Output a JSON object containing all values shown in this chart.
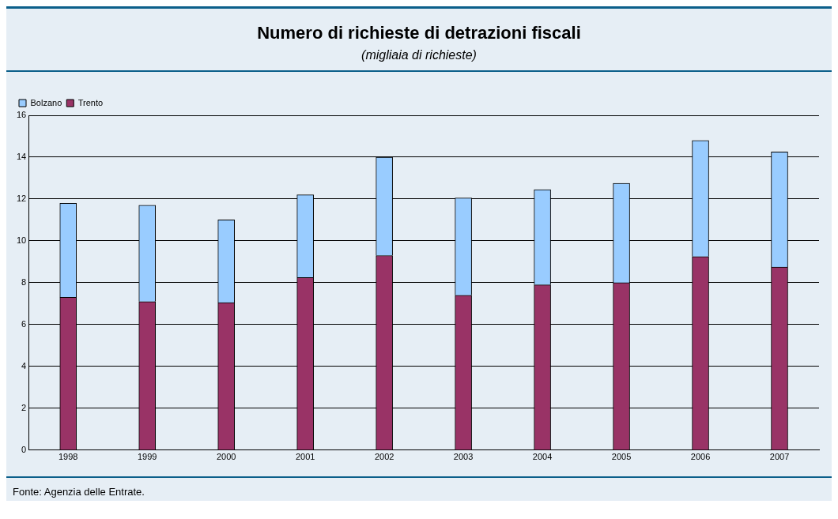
{
  "chart_data": {
    "type": "bar",
    "title": "Numero di richieste di detrazioni fiscali",
    "subtitle": "(migliaia di richieste)",
    "categories": [
      "1998",
      "1999",
      "2000",
      "2001",
      "2002",
      "2003",
      "2004",
      "2005",
      "2006",
      "2007"
    ],
    "series": [
      {
        "name": "Trento",
        "color": "#993366",
        "values": [
          7.3,
          7.1,
          7.05,
          8.25,
          9.3,
          7.4,
          7.9,
          8.0,
          9.25,
          8.75
        ]
      },
      {
        "name": "Bolzano",
        "color": "#99ccff",
        "values": [
          4.5,
          4.6,
          3.95,
          3.95,
          4.7,
          4.65,
          4.55,
          4.75,
          5.55,
          5.5
        ]
      }
    ],
    "stacked": true,
    "ylim": [
      0,
      16
    ],
    "yticks": [
      0,
      2,
      4,
      6,
      8,
      10,
      12,
      14,
      16
    ],
    "grid": "y",
    "legend": "top left",
    "annotations": [
      "Fonte: Agenzia delle Entrate."
    ]
  }
}
